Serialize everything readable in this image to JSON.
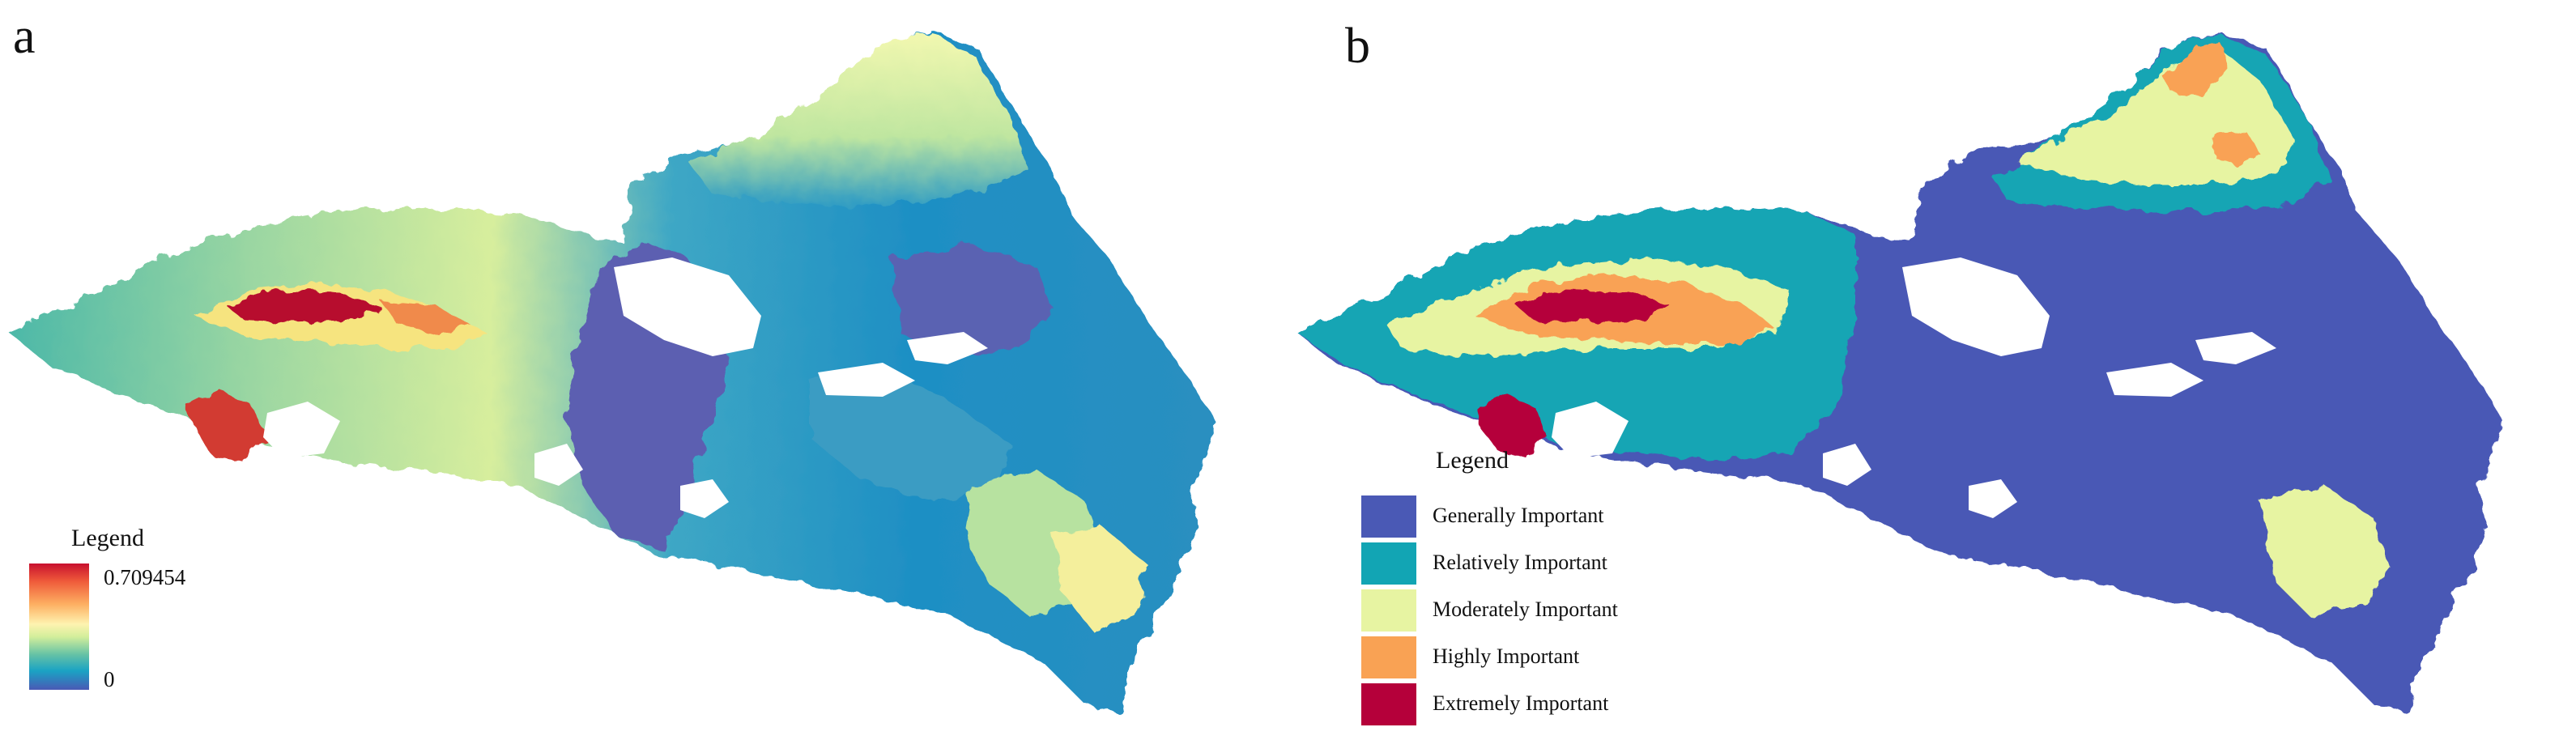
{
  "panel_a": {
    "letter": "a",
    "legend": {
      "title": "Legend",
      "max": "0.709454",
      "min": "0",
      "ramp_colors": [
        "#c8102e",
        "#fdae61",
        "#fef3b0",
        "#66c2a5",
        "#1aa3c4",
        "#4a59b5"
      ]
    }
  },
  "panel_b": {
    "letter": "b",
    "legend": {
      "title": "Legend",
      "classes": [
        {
          "label": "Generally Important",
          "color": "#4a59b5"
        },
        {
          "label": "Relatively Important",
          "color": "#12a5b4"
        },
        {
          "label": "Moderately Important",
          "color": "#e7f4a2"
        },
        {
          "label": "Highly Important",
          "color": "#f9a254"
        },
        {
          "label": "Extremely Important",
          "color": "#b5003a"
        }
      ]
    }
  }
}
